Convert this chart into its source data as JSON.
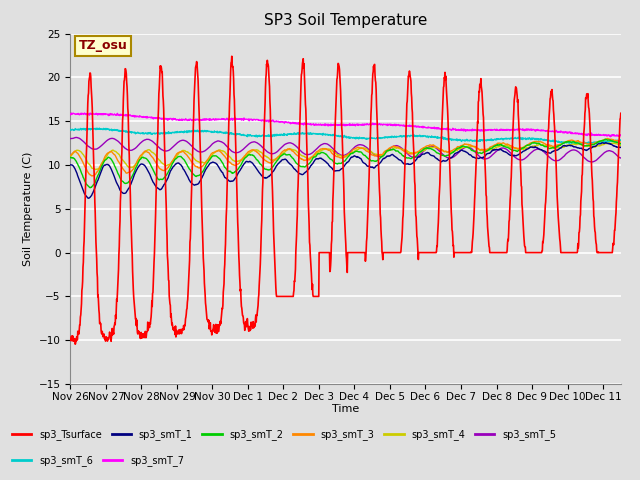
{
  "title": "SP3 Soil Temperature",
  "xlabel": "Time",
  "ylabel": "Soil Temperature (C)",
  "ylim": [
    -15,
    25
  ],
  "xlim_days": [
    0,
    15.5
  ],
  "x_tick_labels": [
    "Nov 26",
    "Nov 27",
    "Nov 28",
    "Nov 29",
    "Nov 30",
    "Dec 1",
    "Dec 2",
    "Dec 3",
    "Dec 4",
    "Dec 5",
    "Dec 6",
    "Dec 7",
    "Dec 8",
    "Dec 9",
    "Dec 10",
    "Dec 11"
  ],
  "x_tick_positions": [
    0,
    1,
    2,
    3,
    4,
    5,
    6,
    7,
    8,
    9,
    10,
    11,
    12,
    13,
    14,
    15
  ],
  "background_color": "#e0e0e0",
  "plot_bg_color": "#e0e0e0",
  "annotation_text": "TZ_osu",
  "annotation_color": "#8B0000",
  "annotation_bg": "#ffffcc",
  "series_colors": {
    "sp3_Tsurface": "#ff0000",
    "sp3_smT_1": "#000080",
    "sp3_smT_2": "#00cc00",
    "sp3_smT_3": "#ff8800",
    "sp3_smT_4": "#cccc00",
    "sp3_smT_5": "#9900bb",
    "sp3_smT_6": "#00cccc",
    "sp3_smT_7": "#ff00ff"
  },
  "legend_labels": [
    "sp3_Tsurface",
    "sp3_smT_1",
    "sp3_smT_2",
    "sp3_smT_3",
    "sp3_smT_4",
    "sp3_smT_5",
    "sp3_smT_6",
    "sp3_smT_7"
  ]
}
